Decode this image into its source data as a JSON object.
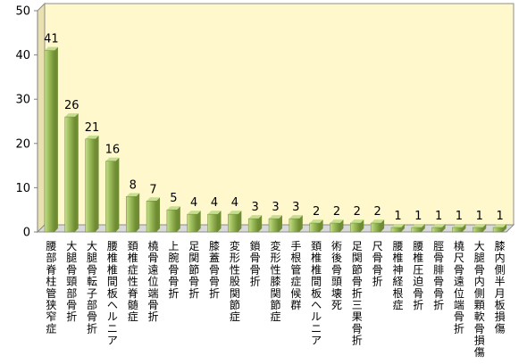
{
  "chart_data": {
    "type": "bar",
    "title": "",
    "xlabel": "",
    "ylabel": "",
    "ylim": [
      0,
      50
    ],
    "yticks": [
      0,
      10,
      20,
      30,
      40,
      50
    ],
    "grid": false,
    "categories": [
      "腰部脊柱管狭窄症",
      "大腿骨頸部骨折",
      "大腿骨転子部骨折",
      "腰椎椎間板ヘルニア",
      "頚椎症性脊髄症",
      "橈骨遠位端骨折",
      "上腕骨骨折",
      "足関節骨折",
      "膝蓋骨骨折",
      "変形性股関節症",
      "鎖骨骨折",
      "変形性膝関節症",
      "手根管症候群",
      "頚椎椎間板ヘルニア",
      "術後骨頭壊死",
      "足関節骨折三果骨折",
      "尺骨骨折",
      "腰椎神経根症",
      "腰椎圧迫骨折",
      "脛骨腓骨骨折",
      "橈尺骨遠位端骨折",
      "大腿骨内側顆軟骨損傷",
      "膝内側半月板損傷"
    ],
    "values": [
      41,
      26,
      21,
      16,
      8,
      7,
      5,
      4,
      4,
      4,
      3,
      3,
      3,
      2,
      2,
      2,
      2,
      1,
      1,
      1,
      1,
      1,
      1
    ],
    "colors": {
      "plot_background": "#fff8cc",
      "bar_fill": "#9bbb59",
      "bar_light": "#c6de8f",
      "bar_dark": "#6f8c33"
    }
  }
}
